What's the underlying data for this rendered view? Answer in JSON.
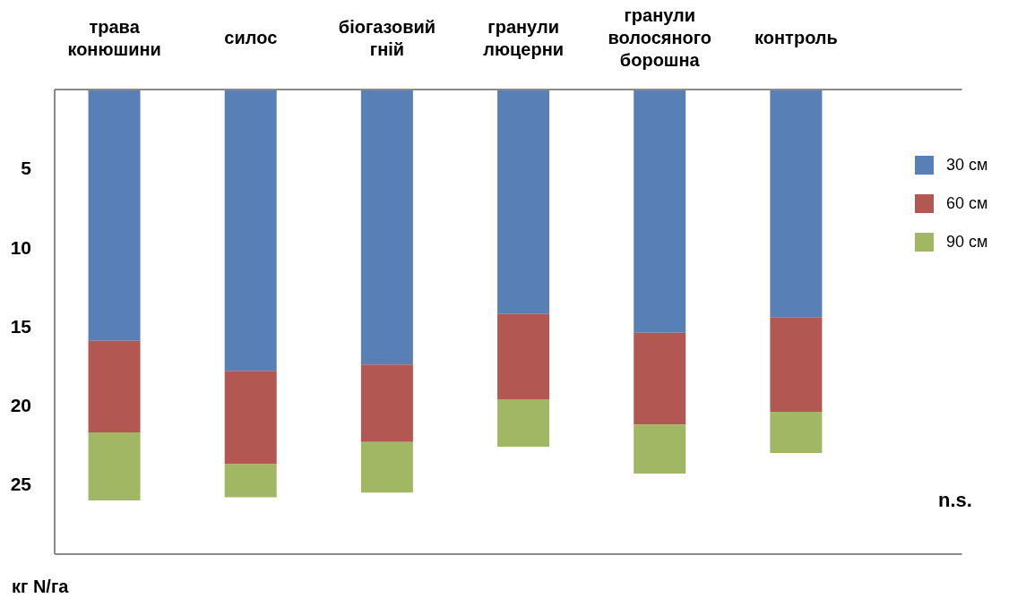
{
  "chart_data": {
    "type": "bar",
    "stacked": true,
    "categories": [
      "трава конюшини",
      "силос",
      "біогазовий гній",
      "гранули люцерни",
      "гранули волосяного борошна",
      "контроль"
    ],
    "series": [
      {
        "name": "30 см",
        "color": "#5880b7",
        "values": [
          15.9,
          17.8,
          17.4,
          14.2,
          15.4,
          14.4
        ]
      },
      {
        "name": "60 см",
        "color": "#b25751",
        "values": [
          5.8,
          5.9,
          4.9,
          5.4,
          5.8,
          6.0
        ]
      },
      {
        "name": "90 см",
        "color": "#a2b763",
        "values": [
          4.3,
          2.1,
          3.2,
          3.0,
          3.1,
          2.6
        ]
      }
    ],
    "ylim": [
      29.4,
      0
    ],
    "yticks": [
      5,
      10,
      15,
      20,
      25
    ],
    "ylabel": "кг N/га",
    "annotations": [
      "n.s."
    ],
    "legend": "top right"
  }
}
